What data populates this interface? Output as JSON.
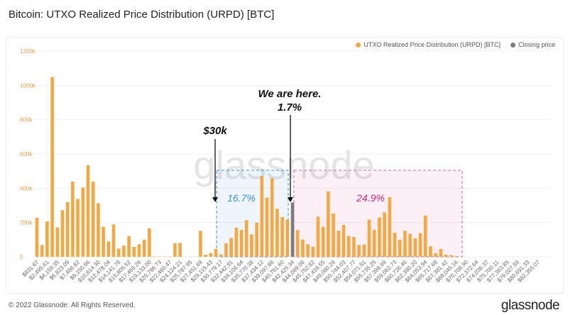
{
  "title": "Bitcoin: UTXO Realized Price Distribution (URPD) [BTC]",
  "footer": "© 2022 Glassnode. All Rights Reserved.",
  "logo": "glassnode",
  "watermark": "glassnode",
  "colors": {
    "bar": "#f5a742",
    "closing": "#7b7b80",
    "blue_zone": "#3d8fd9",
    "pink_zone": "#d6287a"
  },
  "chart_data": {
    "type": "bar",
    "title": "Bitcoin: UTXO Realized Price Distribution (URPD) [BTC]",
    "legend": [
      {
        "name": "UTXO Realized Price Distribution (URPD) [BTC]",
        "color": "#f5a742"
      },
      {
        "name": "Closing price",
        "color": "#7b7b80"
      }
    ],
    "legend_position": "top-right",
    "ylim": [
      0,
      1200000
    ],
    "yticks": [
      "0",
      "200k",
      "400k",
      "600k",
      "800k",
      "1000k",
      "1200k"
    ],
    "grid": true,
    "xtick_labels": [
      "$831.67",
      "$2,495.61",
      "$4,159.35",
      "$5,823.09",
      "$7,486.82",
      "$9,150.56",
      "$10,814.30",
      "$12,478.04",
      "$14,141.78",
      "$15,805.52",
      "$17,469.26",
      "$19,133.00",
      "$20,796.73",
      "$22,460.47",
      "$24,124.21",
      "$25,787.95",
      "$27,451.69",
      "$29,115.43",
      "$30,779.17",
      "$32,442.91",
      "$34,106.64",
      "$35,770.38",
      "$37,434.12",
      "$39,097.86",
      "$40,761.60",
      "$42,425.34",
      "$44,089.08",
      "$45,752.82",
      "$47,416.55",
      "$49,080.29",
      "$50,744.03",
      "$52,407.77",
      "$54,071.51",
      "$55,735.25",
      "$57,398.99",
      "$59,062.73",
      "$60,726.46",
      "$62,390.20",
      "$64,053.94",
      "$65,717.68",
      "$67,381.42",
      "$69,045.16",
      "$70,708.90",
      "$72,372.64",
      "$74,036.37",
      "$75,700.11",
      "$77,363.85",
      "$79,027.59",
      "$80,691.33",
      "$82,355.07"
    ],
    "values": [
      228000,
      69000,
      207000,
      1048000,
      172000,
      272000,
      320000,
      439000,
      338000,
      404000,
      534000,
      439000,
      313000,
      175000,
      90000,
      189000,
      48000,
      65000,
      120000,
      58000,
      73000,
      99000,
      166000,
      2000,
      2000,
      2000,
      2000,
      79000,
      81000,
      1000,
      1000,
      1000,
      152000,
      12000,
      21000,
      46000,
      14000,
      79000,
      110000,
      170000,
      157000,
      214000,
      131000,
      200000,
      472000,
      345000,
      459000,
      280000,
      232000,
      217000,
      317000,
      156000,
      101000,
      73000,
      59000,
      234000,
      175000,
      382000,
      252000,
      152000,
      186000,
      121000,
      116000,
      69000,
      72000,
      217000,
      157000,
      230000,
      259000,
      348000,
      141000,
      99000,
      152000,
      134000,
      108000,
      138000,
      241000,
      61000,
      21000,
      46000,
      12000,
      10000,
      4000,
      0,
      0,
      0,
      0,
      0,
      0,
      0,
      0,
      0,
      0,
      0,
      0,
      0,
      0,
      0,
      0
    ],
    "closing_price_index": 50,
    "annotations": {
      "thirty_k": "$30k",
      "here_line1": "We are here.",
      "here_line2": "1.7%",
      "blue_pct": "16.7%",
      "pink_pct": "24.9%"
    }
  }
}
